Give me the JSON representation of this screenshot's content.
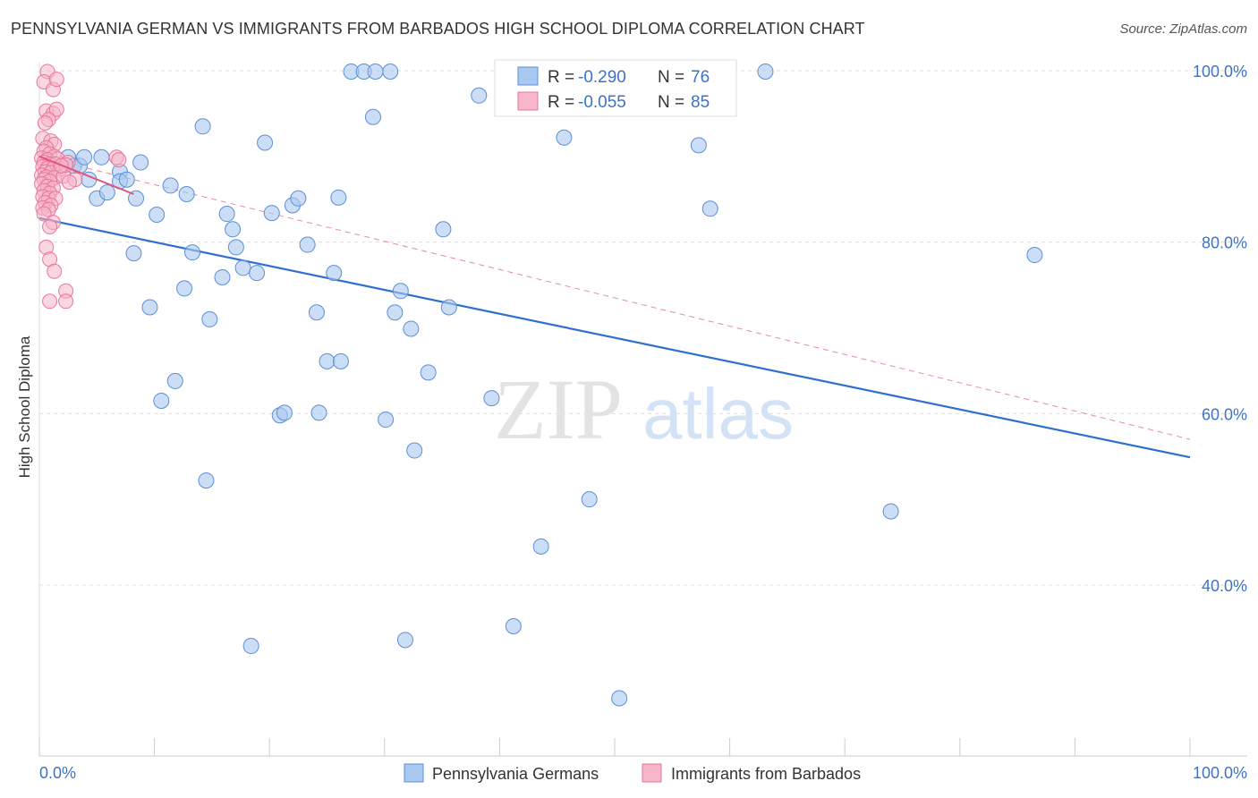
{
  "header": {
    "title": "PENNSYLVANIA GERMAN VS IMMIGRANTS FROM BARBADOS HIGH SCHOOL DIPLOMA CORRELATION CHART",
    "source": "Source: ZipAtlas.com"
  },
  "watermark": {
    "zip": "ZIP",
    "atlas": "atlas"
  },
  "colors": {
    "blue_fill": "#a9c8ef",
    "blue_stroke": "#5b8fd6",
    "blue_line": "#2f6fd0",
    "pink_fill": "#f6b5c8",
    "pink_stroke": "#e8779a",
    "pink_line": "#e0557f",
    "axis_text": "#3d72c6",
    "grid": "#dddddd"
  },
  "legend": {
    "rows": [
      {
        "r_label": "R =",
        "r_value": "-0.290",
        "n_label": "N =",
        "n_value": "76"
      },
      {
        "r_label": "R =",
        "r_value": "-0.055",
        "n_label": "N =",
        "n_value": "85"
      }
    ]
  },
  "chart_data": {
    "type": "scatter",
    "title": "PENNSYLVANIA GERMAN VS IMMIGRANTS FROM BARBADOS HIGH SCHOOL DIPLOMA CORRELATION CHART",
    "xlabel": "",
    "ylabel": "High School Diploma",
    "xlim": [
      0,
      100
    ],
    "ylim": [
      20,
      102
    ],
    "x_tick_labels": [
      "0.0%",
      "100.0%"
    ],
    "y_ticks": [
      40,
      60,
      80,
      100
    ],
    "y_tick_labels": [
      "40.0%",
      "60.0%",
      "80.0%",
      "100.0%"
    ],
    "grid": true,
    "legend_position": "bottom",
    "series": [
      {
        "name": "Pennsylvania Germans",
        "R": -0.29,
        "N": 76,
        "trend": {
          "x": [
            0,
            100
          ],
          "y": [
            82.8,
            54.9
          ],
          "style": "solid"
        },
        "points": [
          [
            2.5,
            89.9
          ],
          [
            3.0,
            88.9
          ],
          [
            3.5,
            88.9
          ],
          [
            3.9,
            89.9
          ],
          [
            4.3,
            87.3
          ],
          [
            5.0,
            85.1
          ],
          [
            5.4,
            89.9
          ],
          [
            5.9,
            85.8
          ],
          [
            7.0,
            88.2
          ],
          [
            7.0,
            87.1
          ],
          [
            7.6,
            87.3
          ],
          [
            8.2,
            78.7
          ],
          [
            8.4,
            85.1
          ],
          [
            8.8,
            89.3
          ],
          [
            9.6,
            72.4
          ],
          [
            10.2,
            83.2
          ],
          [
            10.6,
            61.5
          ],
          [
            11.4,
            86.6
          ],
          [
            11.8,
            63.8
          ],
          [
            12.6,
            74.6
          ],
          [
            12.8,
            85.6
          ],
          [
            13.3,
            78.8
          ],
          [
            14.2,
            93.5
          ],
          [
            14.5,
            52.2
          ],
          [
            14.8,
            71.0
          ],
          [
            15.9,
            75.9
          ],
          [
            16.3,
            83.3
          ],
          [
            16.8,
            81.5
          ],
          [
            17.1,
            79.4
          ],
          [
            17.7,
            77.0
          ],
          [
            18.4,
            32.9
          ],
          [
            18.9,
            76.4
          ],
          [
            19.6,
            91.6
          ],
          [
            20.2,
            83.4
          ],
          [
            20.9,
            59.8
          ],
          [
            21.3,
            60.1
          ],
          [
            22.0,
            84.3
          ],
          [
            22.5,
            85.1
          ],
          [
            23.3,
            79.7
          ],
          [
            24.1,
            71.8
          ],
          [
            24.3,
            60.1
          ],
          [
            25.0,
            66.1
          ],
          [
            25.6,
            76.4
          ],
          [
            26.0,
            85.2
          ],
          [
            26.2,
            66.1
          ],
          [
            27.1,
            99.9
          ],
          [
            28.2,
            99.9
          ],
          [
            29.0,
            94.6
          ],
          [
            29.2,
            99.9
          ],
          [
            30.1,
            59.3
          ],
          [
            30.5,
            99.9
          ],
          [
            30.9,
            71.8
          ],
          [
            31.4,
            74.3
          ],
          [
            31.8,
            33.6
          ],
          [
            32.3,
            69.9
          ],
          [
            32.6,
            55.7
          ],
          [
            33.8,
            64.8
          ],
          [
            35.1,
            81.5
          ],
          [
            35.6,
            72.4
          ],
          [
            38.2,
            97.1
          ],
          [
            39.3,
            61.8
          ],
          [
            41.2,
            35.2
          ],
          [
            43.6,
            44.5
          ],
          [
            45.6,
            92.2
          ],
          [
            47.8,
            50.0
          ],
          [
            50.4,
            26.8
          ],
          [
            57.3,
            91.3
          ],
          [
            58.3,
            83.9
          ],
          [
            63.1,
            99.9
          ],
          [
            74.0,
            48.6
          ],
          [
            86.5,
            78.5
          ]
        ]
      },
      {
        "name": "Immigrants from Barbados",
        "R": -0.055,
        "N": 85,
        "trend": {
          "x": [
            0,
            8.2
          ],
          "y": [
            90.0,
            85.6
          ],
          "style": "solid"
        },
        "trend_dashed": {
          "x": [
            0,
            100
          ],
          "y": [
            90.0,
            57.0
          ],
          "style": "dashed"
        },
        "points": [
          [
            0.7,
            99.9
          ],
          [
            0.4,
            98.7
          ],
          [
            1.2,
            97.8
          ],
          [
            1.5,
            99.0
          ],
          [
            0.6,
            95.3
          ],
          [
            1.2,
            95.0
          ],
          [
            1.5,
            95.5
          ],
          [
            0.8,
            94.3
          ],
          [
            0.5,
            93.9
          ],
          [
            0.3,
            92.1
          ],
          [
            1.0,
            91.8
          ],
          [
            1.3,
            91.4
          ],
          [
            0.6,
            91.0
          ],
          [
            0.4,
            90.6
          ],
          [
            0.9,
            90.3
          ],
          [
            1.3,
            90.0
          ],
          [
            0.2,
            89.8
          ],
          [
            0.7,
            89.6
          ],
          [
            1.6,
            89.7
          ],
          [
            0.4,
            89.3
          ],
          [
            0.9,
            89.1
          ],
          [
            1.4,
            89.1
          ],
          [
            0.3,
            88.8
          ],
          [
            0.7,
            88.6
          ],
          [
            1.2,
            88.6
          ],
          [
            1.8,
            88.5
          ],
          [
            0.5,
            88.2
          ],
          [
            1.0,
            88.1
          ],
          [
            0.2,
            87.8
          ],
          [
            0.6,
            87.6
          ],
          [
            1.3,
            87.5
          ],
          [
            2.1,
            87.7
          ],
          [
            0.4,
            87.3
          ],
          [
            0.9,
            87.1
          ],
          [
            0.2,
            86.8
          ],
          [
            0.7,
            86.5
          ],
          [
            1.2,
            86.3
          ],
          [
            0.4,
            86.0
          ],
          [
            0.9,
            85.7
          ],
          [
            0.3,
            85.3
          ],
          [
            0.8,
            85.1
          ],
          [
            1.4,
            85.1
          ],
          [
            0.5,
            84.6
          ],
          [
            1.0,
            84.3
          ],
          [
            0.3,
            84.0
          ],
          [
            0.8,
            83.8
          ],
          [
            0.4,
            83.3
          ],
          [
            1.2,
            82.3
          ],
          [
            0.9,
            81.8
          ],
          [
            0.6,
            79.4
          ],
          [
            0.9,
            78.0
          ],
          [
            1.3,
            76.6
          ],
          [
            2.3,
            74.3
          ],
          [
            0.9,
            73.1
          ],
          [
            2.3,
            73.1
          ],
          [
            6.7,
            89.9
          ],
          [
            6.9,
            89.6
          ],
          [
            2.5,
            89.3
          ],
          [
            3.1,
            87.3
          ],
          [
            2.3,
            89.0
          ],
          [
            1.9,
            88.9
          ],
          [
            2.6,
            87.0
          ]
        ]
      }
    ]
  },
  "bottom_legend": {
    "items": [
      "Pennsylvania Germans",
      "Immigrants from Barbados"
    ]
  }
}
